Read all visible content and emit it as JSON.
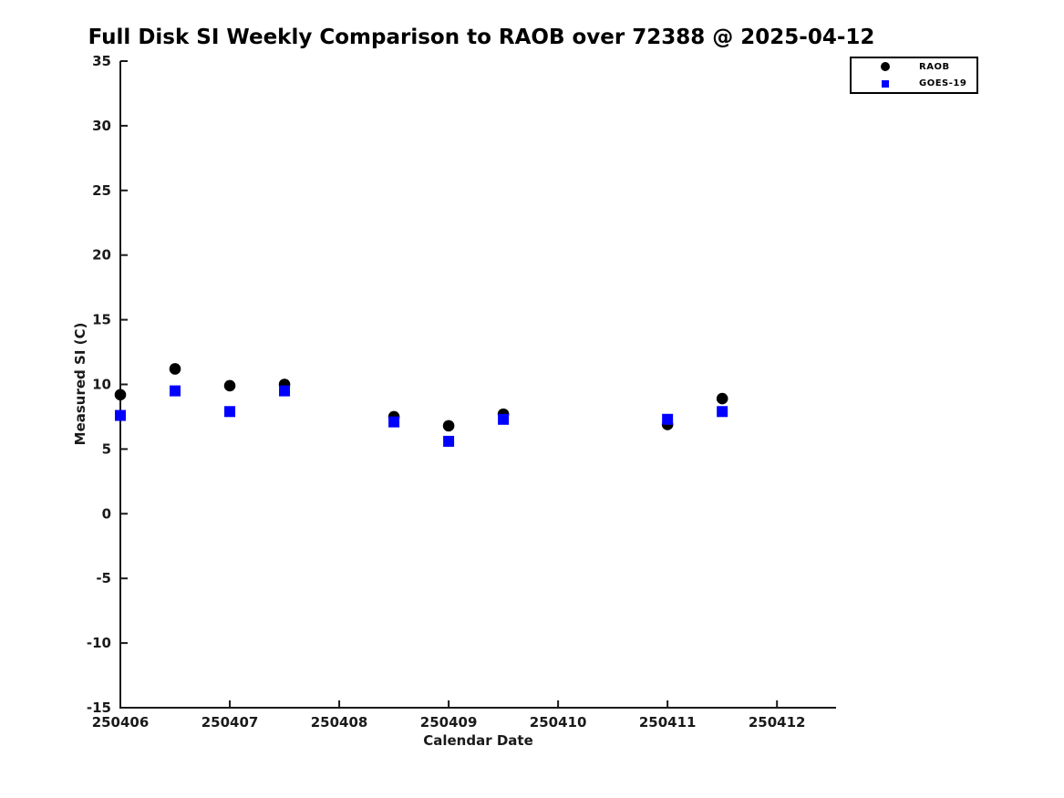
{
  "figure": {
    "background": "#ffffff"
  },
  "chart_data": {
    "type": "scatter",
    "title": "Full Disk SI Weekly Comparison to RAOB over 72388 @ 2025-04-12",
    "xlabel": "Calendar Date",
    "ylabel": "Measured SI (C)",
    "xlim": [
      250406,
      250412.54
    ],
    "ylim": [
      -15,
      35
    ],
    "x_ticks": [
      250406,
      250407,
      250408,
      250409,
      250410,
      250411,
      250412
    ],
    "y_ticks": [
      35,
      30,
      25,
      20,
      15,
      10,
      5,
      0,
      -5,
      -10,
      -15
    ],
    "grid": false,
    "axis_color": "#1a1a1a",
    "x": [
      250406.0,
      250406.5,
      250407.0,
      250407.5,
      250408.5,
      250409.0,
      250409.5,
      250411.0,
      250411.5
    ],
    "series": [
      {
        "name": "RAOB",
        "marker": "circle",
        "color": "#000000",
        "values": [
          9.2,
          11.2,
          9.9,
          10.0,
          7.5,
          6.8,
          7.7,
          6.9,
          8.9
        ]
      },
      {
        "name": "GOES-19",
        "marker": "square",
        "color": "#0000FF",
        "values": [
          7.6,
          9.5,
          7.9,
          9.5,
          7.1,
          5.6,
          7.3,
          7.3,
          7.9
        ]
      }
    ],
    "legend": {
      "position": "top-right-outside",
      "entries": [
        "RAOB",
        "GOES-19"
      ]
    }
  }
}
